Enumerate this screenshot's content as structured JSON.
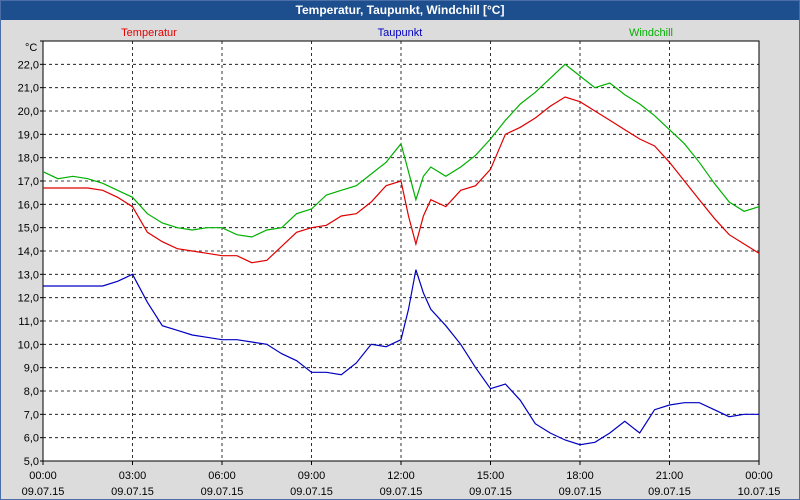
{
  "window": {
    "title": "Temperatur, Taupunkt, Windchill [°C]"
  },
  "chart_data": {
    "type": "line",
    "title": "Temperatur, Taupunkt, Windchill [°C]",
    "ylabel": "°C",
    "ylim": [
      5.0,
      23.0
    ],
    "xlim": [
      "09.07.15 00:00",
      "10.07.15 00:00"
    ],
    "grid": true,
    "legend_position": "top",
    "y_ticks": [
      "5,0",
      "6,0",
      "7,0",
      "8,0",
      "9,0",
      "10,0",
      "11,0",
      "12,0",
      "13,0",
      "14,0",
      "15,0",
      "16,0",
      "17,0",
      "18,0",
      "19,0",
      "20,0",
      "21,0",
      "22,0"
    ],
    "x_ticks": [
      {
        "time": "00:00",
        "date": "09.07.15"
      },
      {
        "time": "03:00",
        "date": "09.07.15"
      },
      {
        "time": "06:00",
        "date": "09.07.15"
      },
      {
        "time": "09:00",
        "date": "09.07.15"
      },
      {
        "time": "12:00",
        "date": "09.07.15"
      },
      {
        "time": "15:00",
        "date": "09.07.15"
      },
      {
        "time": "18:00",
        "date": "09.07.15"
      },
      {
        "time": "21:00",
        "date": "09.07.15"
      },
      {
        "time": "00:00",
        "date": "10.07.15"
      }
    ],
    "x_hours": [
      0,
      0.5,
      1,
      1.5,
      2,
      2.5,
      3,
      3.5,
      4,
      4.5,
      5,
      5.5,
      6,
      6.5,
      7,
      7.5,
      8,
      8.5,
      9,
      9.5,
      10,
      10.5,
      11,
      11.5,
      12,
      12.25,
      12.5,
      12.75,
      13,
      13.5,
      14,
      14.5,
      15,
      15.5,
      16,
      16.5,
      17,
      17.5,
      18,
      18.5,
      19,
      19.5,
      20,
      20.5,
      21,
      21.5,
      22,
      22.5,
      23,
      23.5,
      24
    ],
    "series": [
      {
        "name": "Temperatur",
        "color": "#e00000",
        "values": [
          16.7,
          16.7,
          16.7,
          16.7,
          16.6,
          16.3,
          15.9,
          14.8,
          14.4,
          14.1,
          14.0,
          13.9,
          13.8,
          13.8,
          13.5,
          13.6,
          14.2,
          14.8,
          15.0,
          15.1,
          15.5,
          15.6,
          16.1,
          16.8,
          17.0,
          15.5,
          14.3,
          15.5,
          16.2,
          15.9,
          16.6,
          16.8,
          17.5,
          19.0,
          19.3,
          19.7,
          20.2,
          20.6,
          20.4,
          20.0,
          19.6,
          19.2,
          18.8,
          18.5,
          17.8,
          17.0,
          16.2,
          15.4,
          14.7,
          14.3,
          13.9
        ]
      },
      {
        "name": "Taupunkt",
        "color": "#0000c0",
        "values": [
          12.5,
          12.5,
          12.5,
          12.5,
          12.5,
          12.7,
          13.0,
          11.8,
          10.8,
          10.6,
          10.4,
          10.3,
          10.2,
          10.2,
          10.1,
          10.0,
          9.6,
          9.3,
          8.8,
          8.8,
          8.7,
          9.2,
          10.0,
          9.9,
          10.2,
          11.5,
          13.2,
          12.2,
          11.5,
          10.8,
          10.0,
          9.0,
          8.1,
          8.3,
          7.6,
          6.6,
          6.2,
          5.9,
          5.7,
          5.8,
          6.2,
          6.7,
          6.2,
          7.2,
          7.4,
          7.5,
          7.5,
          7.2,
          6.9,
          7.0,
          7.0
        ]
      },
      {
        "name": "Windchill",
        "color": "#00b000",
        "values": [
          17.4,
          17.1,
          17.2,
          17.1,
          16.9,
          16.6,
          16.3,
          15.6,
          15.2,
          15.0,
          14.9,
          15.0,
          15.0,
          14.7,
          14.6,
          14.9,
          15.0,
          15.6,
          15.8,
          16.4,
          16.6,
          16.8,
          17.3,
          17.8,
          18.6,
          17.4,
          16.2,
          17.2,
          17.6,
          17.2,
          17.6,
          18.1,
          18.8,
          19.6,
          20.3,
          20.8,
          21.4,
          22.0,
          21.5,
          21.0,
          21.2,
          20.7,
          20.3,
          19.8,
          19.2,
          18.6,
          17.8,
          16.9,
          16.1,
          15.7,
          15.9
        ]
      }
    ]
  }
}
